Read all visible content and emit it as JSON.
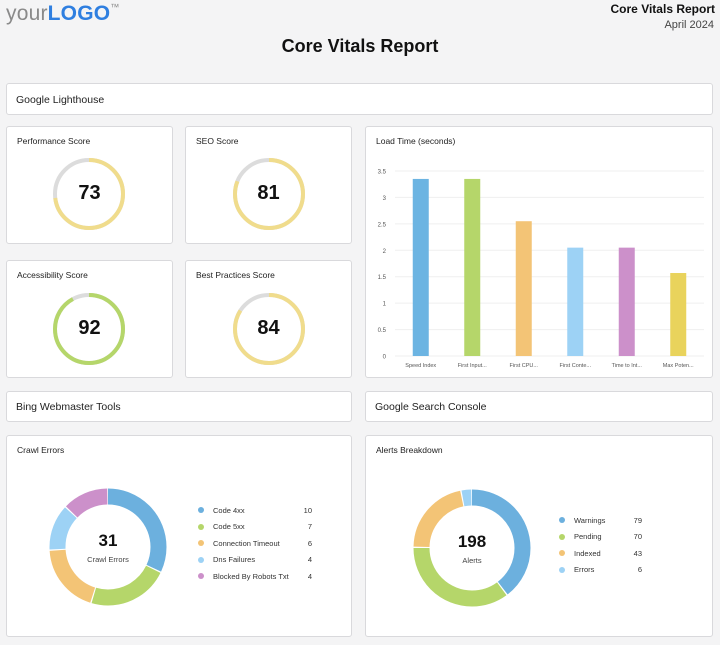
{
  "header": {
    "logo_prefix": "your",
    "logo_main": "LOGO",
    "logo_tm": "™",
    "report_title": "Core Vitals Report",
    "report_date": "April 2024",
    "main_title": "Core Vitals Report"
  },
  "sections": {
    "lighthouse": "Google Lighthouse",
    "bing": "Bing Webmaster Tools",
    "search_console": "Google Search Console"
  },
  "scores": [
    {
      "title": "Performance Score",
      "value": "73",
      "percent": 73,
      "color": "#f0dc8c"
    },
    {
      "title": "SEO Score",
      "value": "81",
      "percent": 81,
      "color": "#f0dc8c"
    },
    {
      "title": "Accessibility Score",
      "value": "92",
      "percent": 92,
      "color": "#b5d66a"
    },
    {
      "title": "Best Practices Score",
      "value": "84",
      "percent": 84,
      "color": "#f0dc8c"
    }
  ],
  "chart_data": {
    "type": "bar",
    "title": "Load Time (seconds)",
    "categories": [
      "Speed Index",
      "First Input...",
      "First CPU...",
      "First Conte...",
      "Time to Int...",
      "Max Poten..."
    ],
    "values": [
      3.35,
      3.35,
      2.55,
      2.05,
      2.05,
      1.57
    ],
    "colors": [
      "#6cb4e2",
      "#b5d66a",
      "#f3c476",
      "#9dd2f5",
      "#cc90ca",
      "#e9d35c"
    ],
    "yticks": [
      "0",
      "0.5",
      "1",
      "1.5",
      "2",
      "2.5",
      "3",
      "3.5"
    ],
    "ylim": [
      0,
      3.5
    ],
    "xlabel": "",
    "ylabel": ""
  },
  "crawl_errors": {
    "title": "Crawl Errors",
    "total": "31",
    "caption": "Crawl Errors",
    "items": [
      {
        "label": "Code 4xx",
        "value": 10,
        "color": "#6cb0de"
      },
      {
        "label": "Code 5xx",
        "value": 7,
        "color": "#b5d66a"
      },
      {
        "label": "Connection Timeout",
        "value": 6,
        "color": "#f3c476"
      },
      {
        "label": "Dns Failures",
        "value": 4,
        "color": "#9dd2f5"
      },
      {
        "label": "Blocked By Robots Txt",
        "value": 4,
        "color": "#cc90ca"
      }
    ]
  },
  "alerts": {
    "title": "Alerts Breakdown",
    "total": "198",
    "caption": "Alerts",
    "items": [
      {
        "label": "Warnings",
        "value": 79,
        "color": "#6cb0de"
      },
      {
        "label": "Pending",
        "value": 70,
        "color": "#b5d66a"
      },
      {
        "label": "Indexed",
        "value": 43,
        "color": "#f3c476"
      },
      {
        "label": "Errors",
        "value": 6,
        "color": "#9dd2f5"
      }
    ]
  }
}
